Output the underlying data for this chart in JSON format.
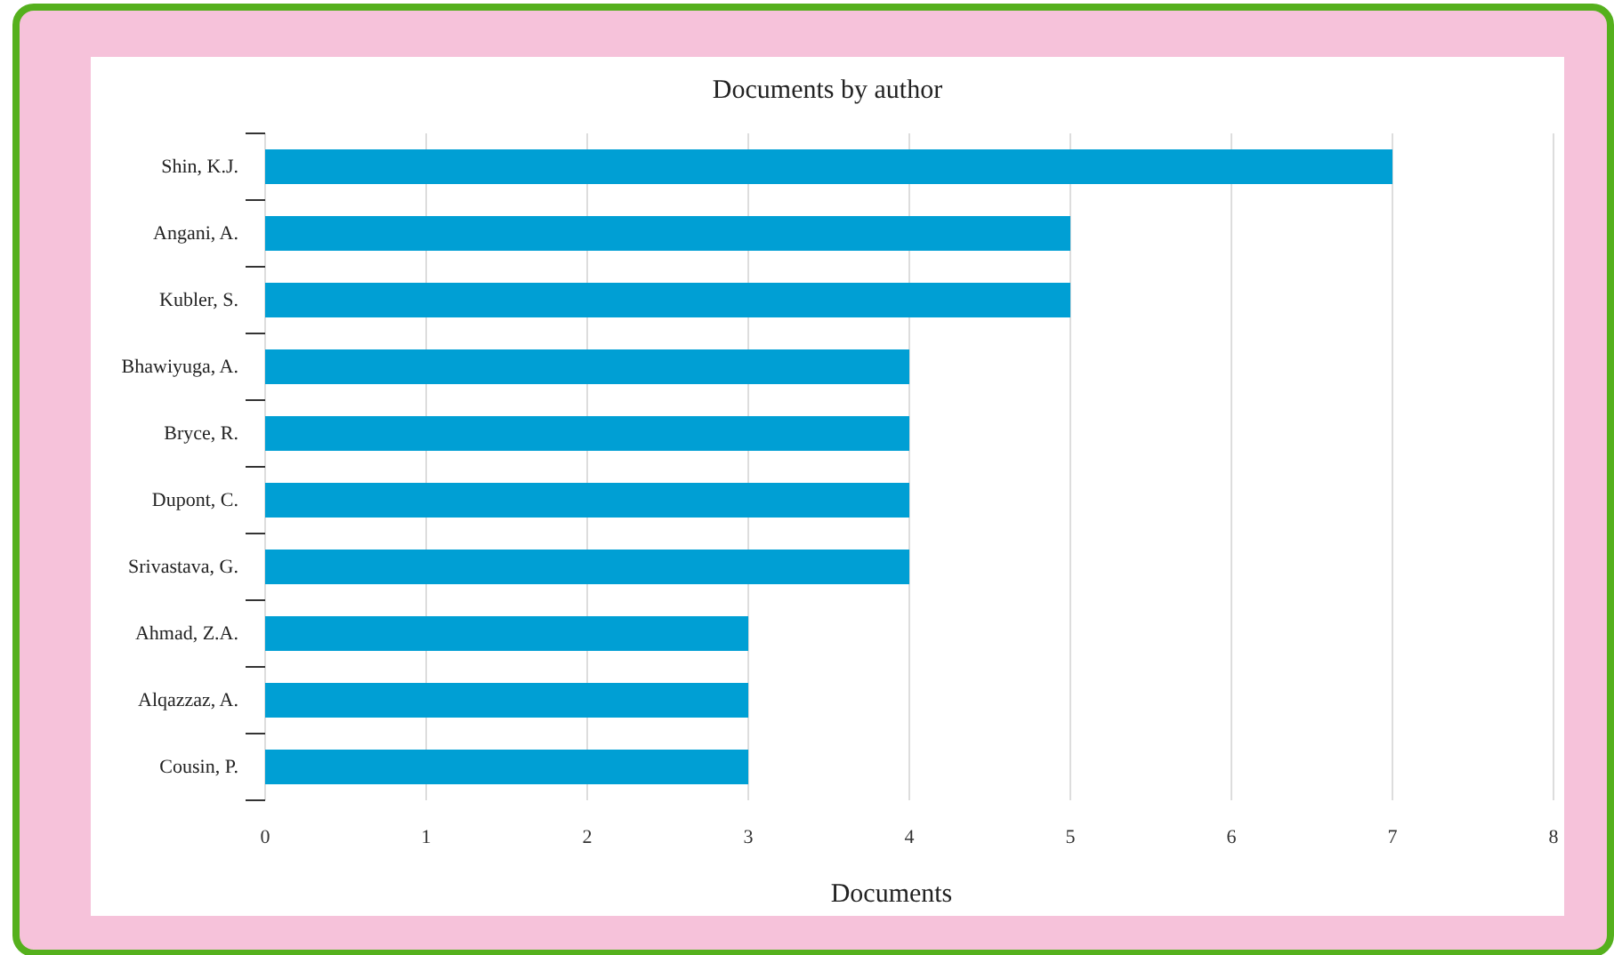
{
  "chart_data": {
    "type": "bar",
    "orientation": "horizontal",
    "title": "Documents by author",
    "xlabel": "Documents",
    "categories": [
      "Shin, K.J.",
      "Angani, A.",
      "Kubler, S.",
      "Bhawiyuga, A.",
      "Bryce, R.",
      "Dupont, C.",
      "Srivastava, G.",
      "Ahmad, Z.A.",
      "Alqazzaz, A.",
      "Cousin, P."
    ],
    "values": [
      7,
      5,
      5,
      4,
      4,
      4,
      4,
      3,
      3,
      3
    ],
    "color": "#009fd4",
    "xlim": [
      0,
      8
    ],
    "xticks": [
      0,
      1,
      2,
      3,
      4,
      5,
      6,
      7,
      8
    ],
    "grid": "x"
  }
}
